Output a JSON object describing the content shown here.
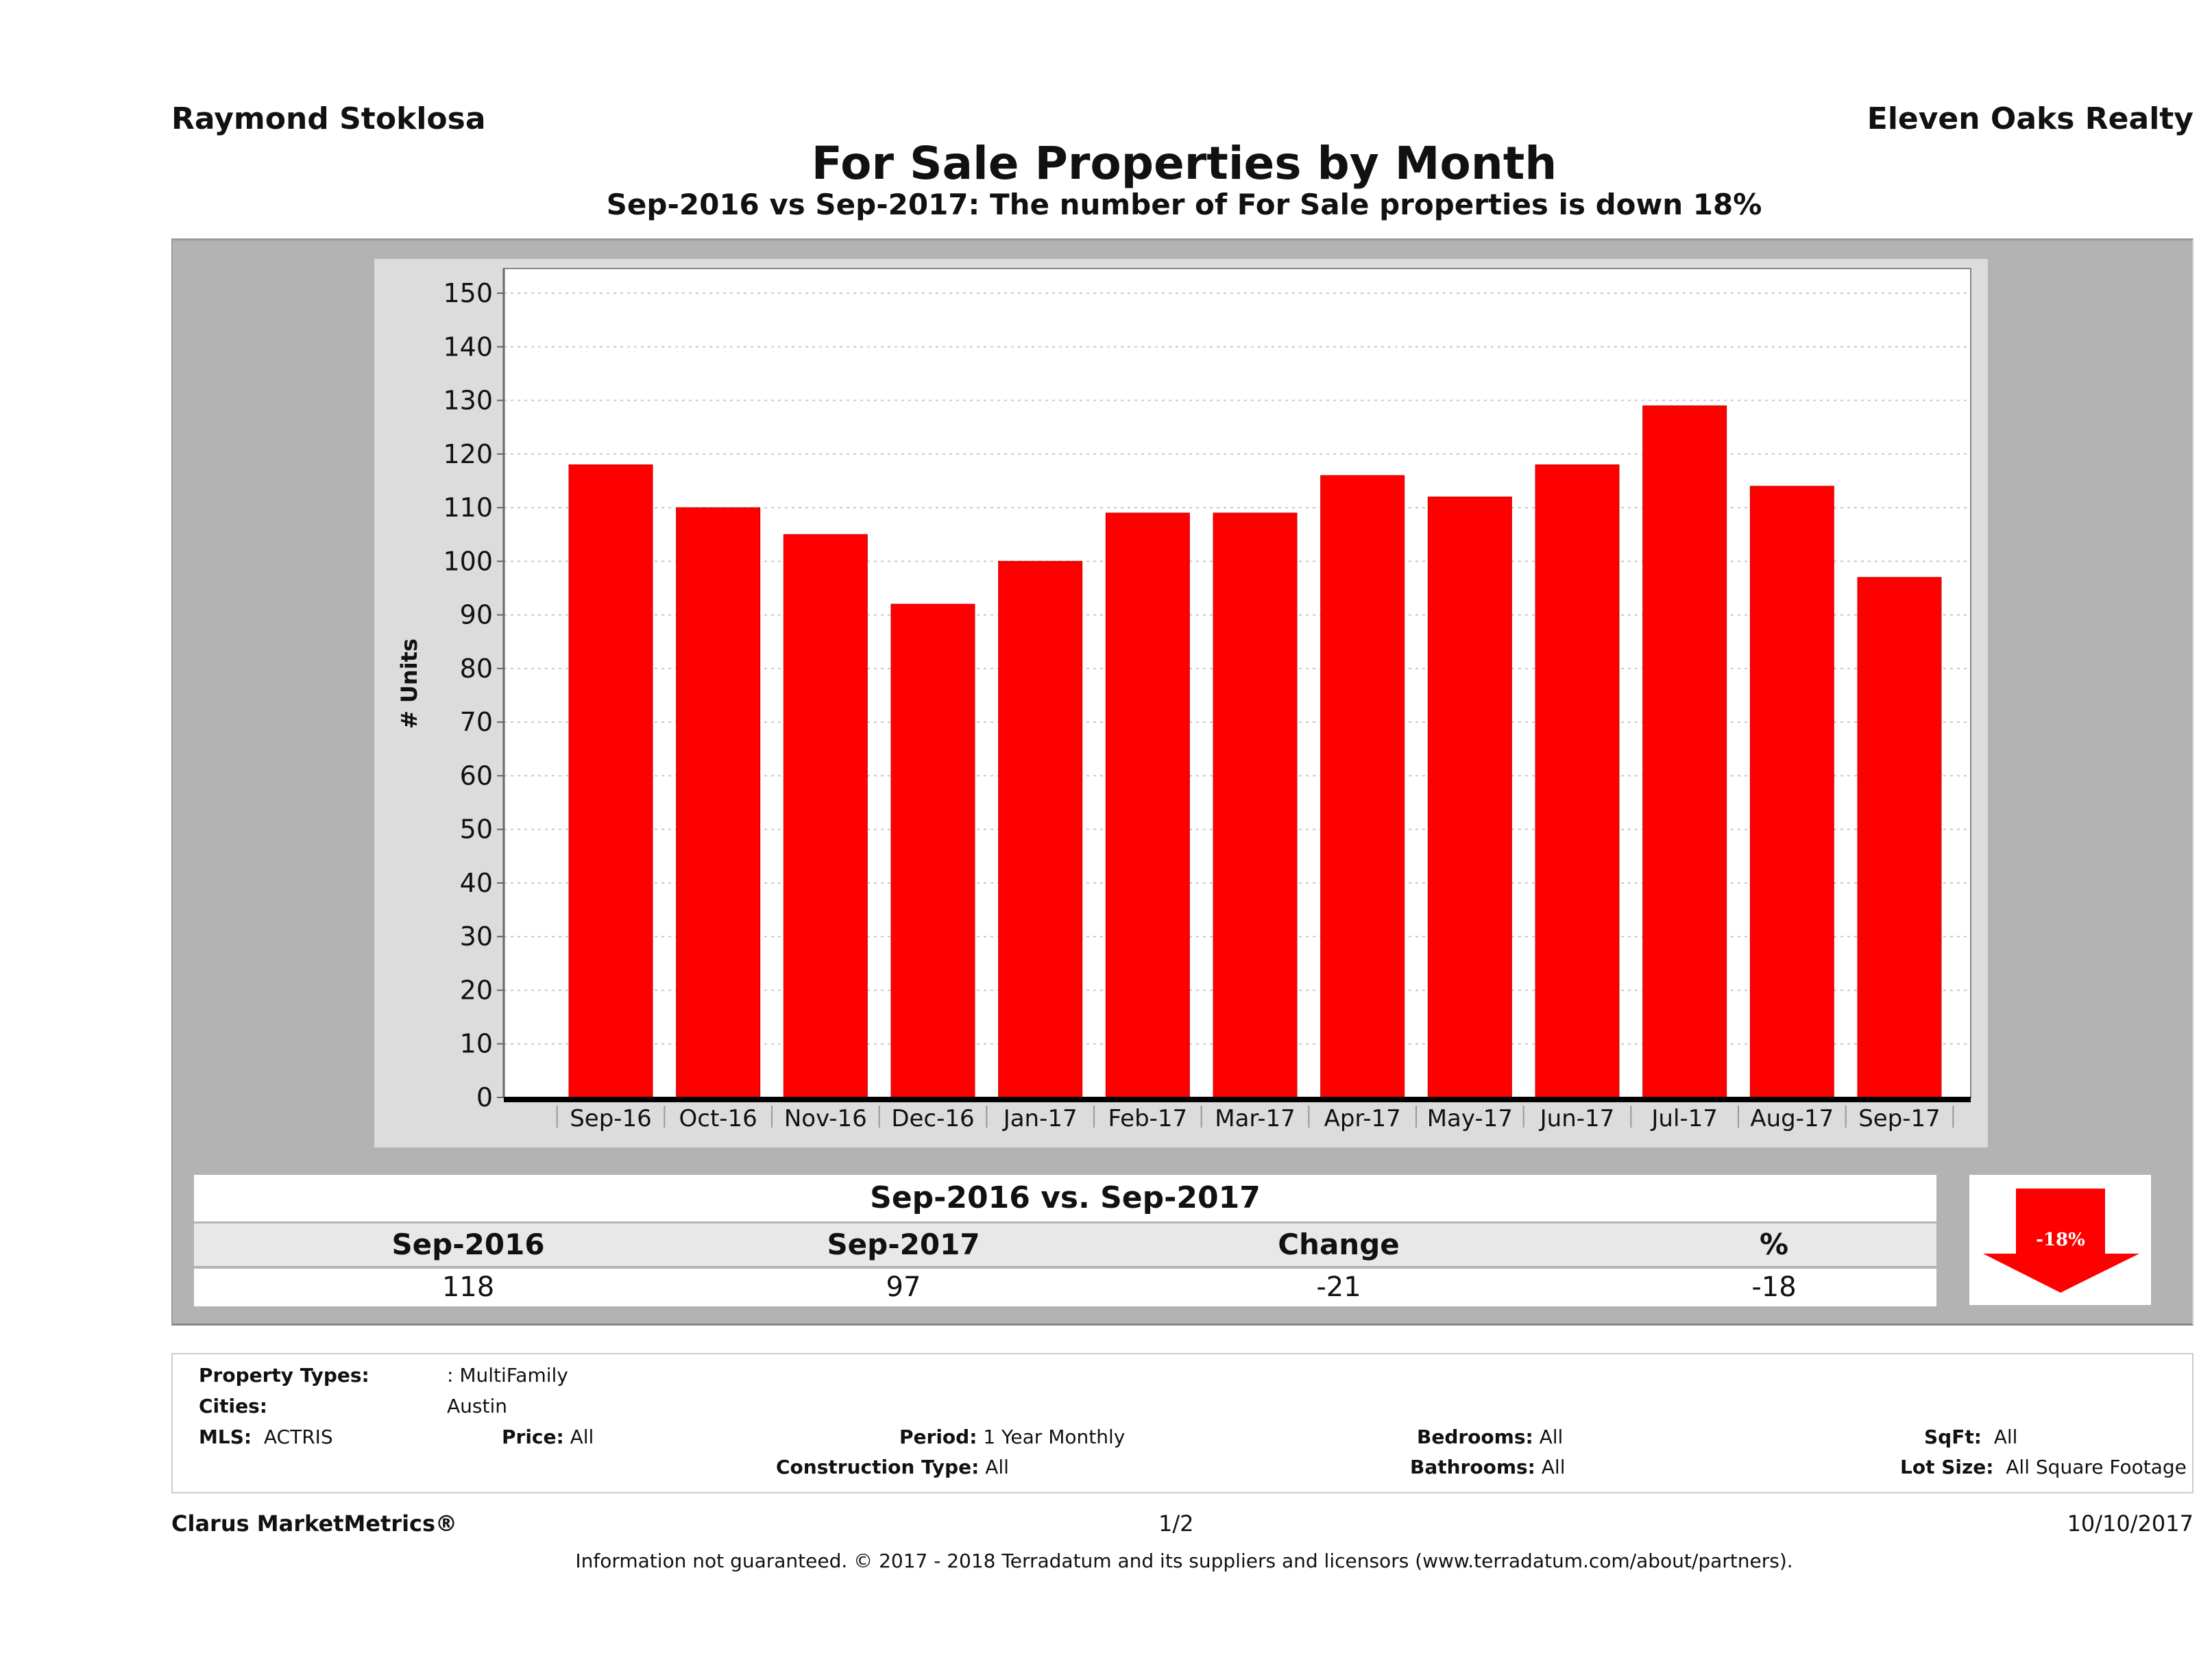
{
  "header": {
    "agent_name": "Raymond Stoklosa",
    "company": "Eleven Oaks Realty",
    "title": "For Sale Properties by Month",
    "subtitle": "Sep-2016 vs Sep-2017: The number of For Sale  properties is down 18%"
  },
  "chart_data": {
    "type": "bar",
    "title": "For Sale Properties by Month",
    "xlabel": "",
    "ylabel": "# Units",
    "categories": [
      "Sep-16",
      "Oct-16",
      "Nov-16",
      "Dec-16",
      "Jan-17",
      "Feb-17",
      "Mar-17",
      "Apr-17",
      "May-17",
      "Jun-17",
      "Jul-17",
      "Aug-17",
      "Sep-17"
    ],
    "values": [
      118,
      110,
      105,
      92,
      100,
      109,
      109,
      116,
      112,
      118,
      129,
      114,
      97
    ],
    "ylim": [
      0,
      150
    ],
    "yticks": [
      0,
      10,
      20,
      30,
      40,
      50,
      60,
      70,
      80,
      90,
      100,
      110,
      120,
      130,
      140,
      150
    ],
    "grid": true,
    "bar_color": "#ff0000",
    "legend": "none"
  },
  "summary": {
    "title": "Sep-2016 vs. Sep-2017",
    "headers": [
      "Sep-2016",
      "Sep-2017",
      "Change",
      "%"
    ],
    "values": [
      "118",
      "97",
      "-21",
      "-18"
    ],
    "badge": {
      "label": "-18%",
      "direction": "down",
      "color": "#ff0000",
      "icon": "down-arrow-icon"
    }
  },
  "filters": {
    "property_types": {
      "label": "Property Types:",
      "value": ": MultiFamily"
    },
    "cities": {
      "label": "Cities:",
      "value": "Austin"
    },
    "mls": {
      "label": "MLS:",
      "value": "ACTRIS"
    },
    "price": {
      "label": "Price:",
      "value": "All"
    },
    "period": {
      "label": "Period:",
      "value": "1 Year Monthly"
    },
    "construction_type": {
      "label": "Construction Type:",
      "value": "All"
    },
    "bedrooms": {
      "label": "Bedrooms:",
      "value": "All"
    },
    "bathrooms": {
      "label": "Bathrooms:",
      "value": "All"
    },
    "sqft": {
      "label": "SqFt:",
      "value": "All"
    },
    "lot_size": {
      "label": "Lot Size:",
      "value": "All Square Footage"
    }
  },
  "footer": {
    "brand": "Clarus MarketMetrics®",
    "page": "1/2",
    "date": "10/10/2017",
    "disclaimer": "Information not guaranteed. © 2017 - 2018 Terradatum and its suppliers and licensors (www.terradatum.com/about/partners)."
  }
}
